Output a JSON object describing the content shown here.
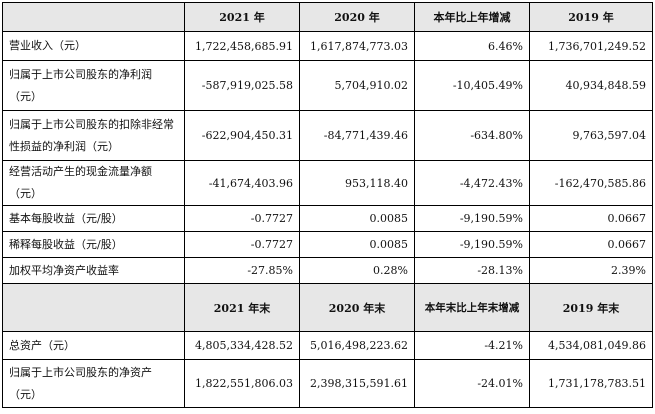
{
  "header1": [
    "",
    "2021 年",
    "2020 年",
    "本年比上年增减",
    "2019 年"
  ],
  "rows1": [
    {
      "label": "营业收入（元）",
      "v2021": "1,722,458,685.91",
      "v2020": "1,617,874,773.03",
      "change": "6.46%",
      "v2019": "1,736,701,249.52"
    },
    {
      "label": "归属于上市公司股东的净利润（元）",
      "v2021": "-587,919,025.58",
      "v2020": "5,704,910.02",
      "change": "-10,405.49%",
      "v2019": "40,934,848.59"
    },
    {
      "label": "归属于上市公司股东的扣除非经常性损益的净利润（元）",
      "v2021": "-622,904,450.31",
      "v2020": "-84,771,439.46",
      "change": "-634.80%",
      "v2019": "9,763,597.04"
    },
    {
      "label": "经营活动产生的现金流量净额（元）",
      "v2021": "-41,674,403.96",
      "v2020": "953,118.40",
      "change": "-4,472.43%",
      "v2019": "-162,470,585.86"
    },
    {
      "label": "基本每股收益（元/股）",
      "v2021": "-0.7727",
      "v2020": "0.0085",
      "change": "-9,190.59%",
      "v2019": "0.0667"
    },
    {
      "label": "稀释每股收益（元/股）",
      "v2021": "-0.7727",
      "v2020": "0.0085",
      "change": "-9,190.59%",
      "v2019": "0.0667"
    },
    {
      "label": "加权平均净资产收益率",
      "v2021": "-27.85%",
      "v2020": "0.28%",
      "change": "-28.13%",
      "v2019": "2.39%"
    }
  ],
  "header2": [
    "",
    "2021 年末",
    "2020 年末",
    "本年末比上年末增减",
    "2019 年末"
  ],
  "rows2": [
    {
      "label": "总资产（元）",
      "v2021": "4,805,334,428.52",
      "v2020": "5,016,498,223.62",
      "change": "-4.21%",
      "v2019": "4,534,081,049.86"
    },
    {
      "label": "归属于上市公司股东的净资产（元）",
      "v2021": "1,822,551,806.03",
      "v2020": "2,398,315,591.61",
      "change": "-24.01%",
      "v2019": "1,731,178,783.51"
    }
  ]
}
